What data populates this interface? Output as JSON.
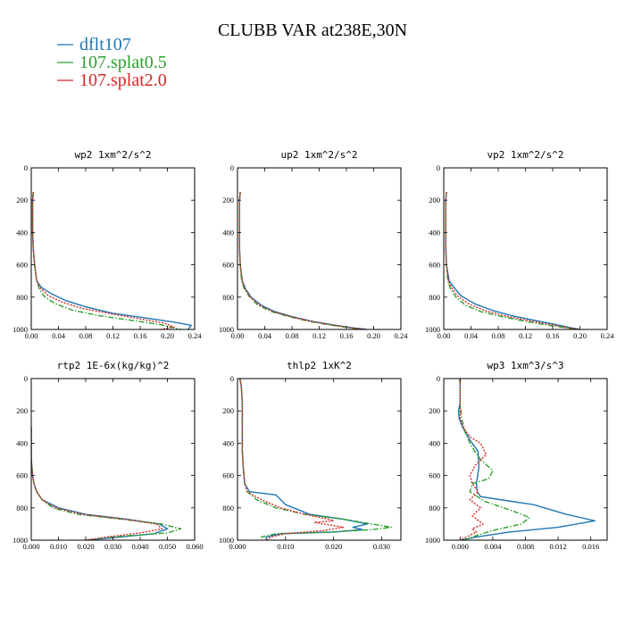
{
  "figure": {
    "title": "CLUBB VAR at238E,30N",
    "legend": [
      {
        "label": "dflt107",
        "color": "#1f77b4",
        "dash": "solid"
      },
      {
        "label": "107.splat0.5",
        "color": "#2ca02c",
        "dash": "dashdot"
      },
      {
        "label": "107.splat2.0",
        "color": "#d62728",
        "dash": "dotted"
      }
    ]
  },
  "chart_data": [
    {
      "type": "line",
      "title": "wp2  1xm^2/s^2",
      "xlim": [
        0,
        0.24
      ],
      "ylim": [
        1000,
        0
      ],
      "xticks": [
        0,
        0.04,
        0.08,
        0.12,
        0.16,
        0.2,
        0.24
      ],
      "xtick_labels": [
        "0.00",
        "0.04",
        "0.08",
        "0.12",
        "0.16",
        "0.20",
        "0.24"
      ],
      "yticks": [
        0,
        200,
        400,
        600,
        800,
        1000
      ],
      "ytick_labels": [
        "0",
        "200",
        "400",
        "600",
        "800",
        "1000"
      ],
      "series": [
        {
          "name": "dflt107",
          "x": [
            0.003,
            0.002,
            0.002,
            0.002,
            0.003,
            0.005,
            0.008,
            0.015,
            0.03,
            0.05,
            0.08,
            0.12,
            0.17,
            0.21,
            0.235,
            0.23
          ],
          "y": [
            150,
            200,
            300,
            400,
            500,
            600,
            700,
            740,
            780,
            820,
            860,
            900,
            930,
            955,
            975,
            1000
          ]
        },
        {
          "name": "107.splat0.5",
          "x": [
            0.003,
            0.002,
            0.002,
            0.002,
            0.003,
            0.005,
            0.008,
            0.012,
            0.02,
            0.035,
            0.06,
            0.1,
            0.15,
            0.19,
            0.21,
            0.22
          ],
          "y": [
            150,
            200,
            300,
            400,
            500,
            600,
            700,
            750,
            800,
            840,
            880,
            915,
            945,
            970,
            990,
            1000
          ]
        },
        {
          "name": "107.splat2.0",
          "x": [
            0.003,
            0.002,
            0.002,
            0.002,
            0.003,
            0.005,
            0.008,
            0.014,
            0.025,
            0.045,
            0.075,
            0.12,
            0.16,
            0.195,
            0.21,
            0.19
          ],
          "y": [
            150,
            200,
            300,
            400,
            500,
            600,
            700,
            745,
            790,
            830,
            870,
            905,
            935,
            960,
            985,
            1000
          ]
        }
      ]
    },
    {
      "type": "line",
      "title": "up2  1xm^2/s^2",
      "xlim": [
        0,
        0.24
      ],
      "ylim": [
        1000,
        0
      ],
      "xticks": [
        0,
        0.04,
        0.08,
        0.12,
        0.16,
        0.2,
        0.24
      ],
      "xtick_labels": [
        "0.00",
        "0.04",
        "0.08",
        "0.12",
        "0.16",
        "0.20",
        "0.24"
      ],
      "yticks": [
        0,
        200,
        400,
        600,
        800,
        1000
      ],
      "ytick_labels": [
        "0",
        "200",
        "400",
        "600",
        "800",
        "1000"
      ],
      "series": [
        {
          "name": "dflt107",
          "x": [
            0.004,
            0.003,
            0.003,
            0.003,
            0.003,
            0.004,
            0.007,
            0.012,
            0.02,
            0.035,
            0.055,
            0.08,
            0.11,
            0.145,
            0.17,
            0.19
          ],
          "y": [
            150,
            200,
            300,
            400,
            500,
            600,
            700,
            750,
            800,
            850,
            890,
            920,
            950,
            975,
            990,
            1000
          ]
        },
        {
          "name": "107.splat0.5",
          "x": [
            0.004,
            0.003,
            0.003,
            0.003,
            0.003,
            0.004,
            0.006,
            0.01,
            0.018,
            0.03,
            0.05,
            0.075,
            0.105,
            0.14,
            0.165,
            0.185
          ],
          "y": [
            150,
            200,
            300,
            400,
            500,
            600,
            700,
            750,
            800,
            850,
            890,
            920,
            950,
            975,
            990,
            1000
          ]
        },
        {
          "name": "107.splat2.0",
          "x": [
            0.004,
            0.003,
            0.003,
            0.003,
            0.003,
            0.004,
            0.007,
            0.011,
            0.019,
            0.033,
            0.053,
            0.078,
            0.108,
            0.143,
            0.168,
            0.188
          ],
          "y": [
            150,
            200,
            300,
            400,
            500,
            600,
            700,
            750,
            800,
            850,
            890,
            920,
            950,
            975,
            990,
            1000
          ]
        }
      ]
    },
    {
      "type": "line",
      "title": "vp2  1xm^2/s^2",
      "xlim": [
        0,
        0.24
      ],
      "ylim": [
        1000,
        0
      ],
      "xticks": [
        0,
        0.04,
        0.08,
        0.12,
        0.16,
        0.2,
        0.24
      ],
      "xtick_labels": [
        "0.00",
        "0.04",
        "0.08",
        "0.12",
        "0.16",
        "0.20",
        "0.24"
      ],
      "yticks": [
        0,
        200,
        400,
        600,
        800,
        1000
      ],
      "ytick_labels": [
        "0",
        "200",
        "400",
        "600",
        "800",
        "1000"
      ],
      "series": [
        {
          "name": "dflt107",
          "x": [
            0.004,
            0.003,
            0.003,
            0.003,
            0.003,
            0.004,
            0.008,
            0.015,
            0.025,
            0.045,
            0.07,
            0.1,
            0.135,
            0.165,
            0.185,
            0.2
          ],
          "y": [
            150,
            200,
            300,
            400,
            500,
            600,
            700,
            740,
            790,
            840,
            880,
            915,
            945,
            970,
            988,
            1000
          ]
        },
        {
          "name": "107.splat0.5",
          "x": [
            0.004,
            0.003,
            0.003,
            0.003,
            0.003,
            0.004,
            0.006,
            0.01,
            0.018,
            0.032,
            0.055,
            0.085,
            0.12,
            0.155,
            0.18,
            0.195
          ],
          "y": [
            150,
            200,
            300,
            400,
            500,
            600,
            700,
            750,
            800,
            850,
            890,
            920,
            950,
            975,
            990,
            1000
          ]
        },
        {
          "name": "107.splat2.0",
          "x": [
            0.004,
            0.003,
            0.003,
            0.003,
            0.003,
            0.004,
            0.007,
            0.012,
            0.021,
            0.038,
            0.062,
            0.092,
            0.128,
            0.16,
            0.183,
            0.198
          ],
          "y": [
            150,
            200,
            300,
            400,
            500,
            600,
            700,
            745,
            795,
            845,
            885,
            918,
            948,
            972,
            989,
            1000
          ]
        }
      ]
    },
    {
      "type": "line",
      "title": "rtp2  1E-6x(kg/kg)^2",
      "xlim": [
        0,
        0.06
      ],
      "ylim": [
        1000,
        0
      ],
      "xticks": [
        0,
        0.01,
        0.02,
        0.03,
        0.04,
        0.05,
        0.06
      ],
      "xtick_labels": [
        "0.000",
        "0.010",
        "0.020",
        "0.030",
        "0.040",
        "0.050",
        "0.060"
      ],
      "yticks": [
        0,
        200,
        400,
        600,
        800,
        1000
      ],
      "ytick_labels": [
        "0",
        "200",
        "400",
        "600",
        "800",
        "1000"
      ],
      "series": [
        {
          "name": "dflt107",
          "x": [
            0.0,
            0.0,
            0.0,
            0.0005,
            0.001,
            0.002,
            0.004,
            0.01,
            0.02,
            0.035,
            0.047,
            0.05,
            0.045,
            0.03,
            0.02
          ],
          "y": [
            300,
            400,
            500,
            600,
            650,
            700,
            750,
            800,
            840,
            870,
            900,
            930,
            960,
            985,
            1000
          ]
        },
        {
          "name": "107.splat0.5",
          "x": [
            0.0,
            0.0,
            0.0,
            0.0005,
            0.001,
            0.002,
            0.004,
            0.008,
            0.017,
            0.033,
            0.048,
            0.055,
            0.05,
            0.03,
            0.02
          ],
          "y": [
            300,
            400,
            500,
            600,
            650,
            700,
            750,
            800,
            840,
            870,
            900,
            930,
            955,
            980,
            1000
          ]
        },
        {
          "name": "107.splat2.0",
          "x": [
            0.0,
            0.0,
            0.0,
            0.0005,
            0.001,
            0.002,
            0.004,
            0.009,
            0.019,
            0.034,
            0.046,
            0.048,
            0.04,
            0.028,
            0.02
          ],
          "y": [
            300,
            400,
            500,
            600,
            650,
            700,
            750,
            800,
            840,
            870,
            900,
            930,
            955,
            980,
            1000
          ]
        }
      ]
    },
    {
      "type": "line",
      "title": "thlp2  1xK^2",
      "xlim": [
        0,
        0.034
      ],
      "ylim": [
        1000,
        0
      ],
      "xticks": [
        0,
        0.01,
        0.02,
        0.03
      ],
      "xtick_labels": [
        "0.000",
        "0.010",
        "0.020",
        "0.030"
      ],
      "yticks": [
        0,
        200,
        400,
        600,
        800,
        1000
      ],
      "ytick_labels": [
        "0",
        "200",
        "400",
        "600",
        "800",
        "1000"
      ],
      "series": [
        {
          "name": "dflt107",
          "x": [
            0.0005,
            0.0008,
            0.001,
            0.001,
            0.001,
            0.001,
            0.0012,
            0.0015,
            0.0025,
            0.008,
            0.01,
            0.015,
            0.022,
            0.027,
            0.024,
            0.026,
            0.02,
            0.009,
            0.006,
            0.006
          ],
          "y": [
            0,
            50,
            150,
            250,
            350,
            450,
            550,
            650,
            700,
            720,
            780,
            840,
            870,
            900,
            920,
            935,
            950,
            960,
            980,
            1000
          ]
        },
        {
          "name": "107.splat0.5",
          "x": [
            0.0005,
            0.0008,
            0.001,
            0.001,
            0.001,
            0.001,
            0.0012,
            0.0015,
            0.002,
            0.004,
            0.008,
            0.014,
            0.022,
            0.028,
            0.032,
            0.028,
            0.019,
            0.008,
            0.005,
            0.005
          ],
          "y": [
            0,
            50,
            150,
            250,
            350,
            450,
            550,
            650,
            700,
            750,
            800,
            840,
            870,
            900,
            920,
            935,
            950,
            960,
            980,
            1000
          ]
        },
        {
          "name": "107.splat2.0",
          "x": [
            0.0005,
            0.0008,
            0.001,
            0.001,
            0.001,
            0.001,
            0.0012,
            0.0015,
            0.002,
            0.005,
            0.009,
            0.014,
            0.019,
            0.02,
            0.016,
            0.022,
            0.018,
            0.01,
            0.007,
            0.006
          ],
          "y": [
            0,
            50,
            150,
            250,
            350,
            450,
            550,
            650,
            700,
            750,
            800,
            840,
            870,
            880,
            890,
            920,
            940,
            960,
            980,
            1000
          ]
        }
      ]
    },
    {
      "type": "line",
      "title": "wp3  1xm^3/s^3",
      "xlim": [
        -0.002,
        0.018
      ],
      "ylim": [
        1000,
        0
      ],
      "xticks": [
        0,
        0.004,
        0.008,
        0.012,
        0.016
      ],
      "xtick_labels": [
        "0.000",
        "0.004",
        "0.008",
        "0.012",
        "0.016"
      ],
      "yticks": [
        0,
        200,
        400,
        600,
        800,
        1000
      ],
      "ytick_labels": [
        "0",
        "200",
        "400",
        "600",
        "800",
        "1000"
      ],
      "series": [
        {
          "name": "dflt107",
          "x": [
            0.0,
            0.0,
            -0.0002,
            -0.0001,
            0.0003,
            0.0012,
            0.0022,
            0.0023,
            0.002,
            0.0021,
            0.0025,
            0.005,
            0.009,
            0.013,
            0.0165,
            0.012,
            0.006,
            0.002,
            0.0
          ],
          "y": [
            0,
            150,
            200,
            250,
            300,
            380,
            450,
            550,
            650,
            700,
            730,
            750,
            780,
            840,
            880,
            920,
            950,
            980,
            1000
          ]
        },
        {
          "name": "107.splat0.5",
          "x": [
            0.0,
            0.0,
            0.0002,
            0.0006,
            0.0012,
            0.0018,
            0.0025,
            0.004,
            0.0035,
            0.0015,
            0.0012,
            0.003,
            0.0065,
            0.0085,
            0.0075,
            0.004,
            0.0015,
            0.0005
          ],
          "y": [
            0,
            150,
            250,
            330,
            400,
            450,
            500,
            570,
            620,
            650,
            700,
            760,
            820,
            860,
            900,
            940,
            980,
            1000
          ]
        },
        {
          "name": "107.splat2.0",
          "x": [
            0.0,
            0.0,
            0.0005,
            0.0012,
            0.0025,
            0.0032,
            0.0018,
            0.0012,
            0.0015,
            0.0022,
            0.0012,
            0.0025,
            0.0015,
            0.0028,
            0.0015,
            0.002,
            0.0008,
            0.0
          ],
          "y": [
            0,
            250,
            310,
            360,
            400,
            470,
            540,
            600,
            650,
            700,
            750,
            800,
            850,
            900,
            930,
            950,
            980,
            1000
          ]
        }
      ]
    }
  ]
}
